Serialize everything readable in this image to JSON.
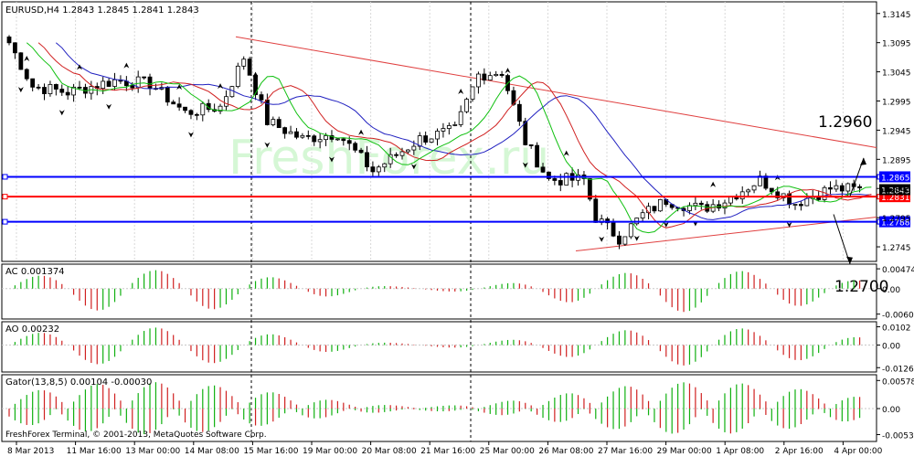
{
  "chart_data": [
    {
      "type": "candlestick",
      "title": "EURUSD,H4  1.2843 1.2845 1.2841 1.2843",
      "yticks": [
        "1.3145",
        "1.3095",
        "1.3045",
        "1.2995",
        "1.2945",
        "1.2895",
        "1.2845",
        "1.2795",
        "1.2745"
      ],
      "ylim": [
        1.272,
        1.3165
      ],
      "xticks": [
        "8 Mar 2013",
        "11 Mar 16:00",
        "13 Mar 00:00",
        "14 Mar 08:00",
        "15 Mar 16:00",
        "19 Mar 00:00",
        "20 Mar 08:00",
        "21 Mar 16:00",
        "25 Mar 00:00",
        "26 Mar 08:00",
        "27 Mar 16:00",
        "29 Mar 00:00",
        "1 Apr 08:00",
        "2 Apr 16:00",
        "4 Apr 00:00"
      ],
      "watermark": "FreshForex.ru",
      "horizontal_levels": [
        {
          "label": "1.2865",
          "value": 1.2865,
          "color": "#0000ff"
        },
        {
          "label": "1.2831",
          "value": 1.2831,
          "color": "#ff0000"
        },
        {
          "label": "1.2788",
          "value": 1.2788,
          "color": "#0000ff"
        }
      ],
      "current_price_label": "1.2843",
      "targets": [
        {
          "label": "1.2960",
          "value": 1.296
        },
        {
          "label": "1.2700",
          "value": 1.27
        }
      ],
      "indicators": [
        "Alligator jaw (blue)",
        "Alligator teeth (red)",
        "Alligator lips (green)",
        "Fractals"
      ]
    },
    {
      "type": "bar",
      "title": "AC 0.001374",
      "yticks": [
        "0.00474",
        "0.00",
        "-0.00609"
      ],
      "ylim": [
        -0.0066,
        0.0052
      ]
    },
    {
      "type": "bar",
      "title": "AO 0.00232",
      "yticks": [
        "0.0102",
        "0.00",
        "-0.01261"
      ],
      "ylim": [
        -0.0135,
        0.0115
      ]
    },
    {
      "type": "bar",
      "title": "Gator(13,8,5) 0.00104 -0.00030",
      "yticks": [
        "0.00578",
        "0.00",
        "-0.00535"
      ],
      "ylim": [
        -0.0062,
        0.0064
      ],
      "footer": "FreshForex Terminal, © 2001-2013, MetaQuotes Software Corp."
    }
  ]
}
